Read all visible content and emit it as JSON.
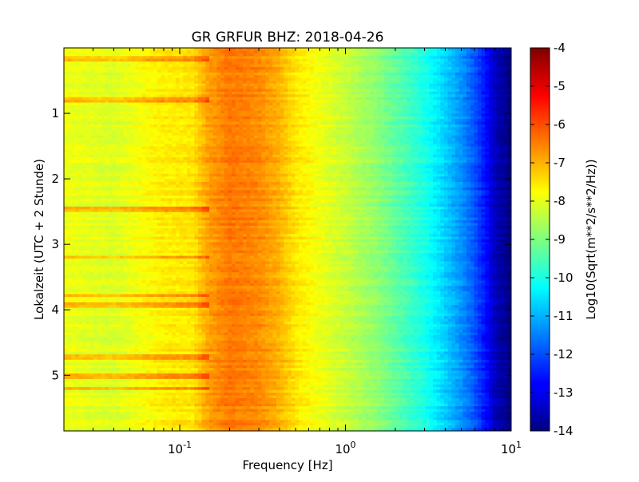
{
  "chart_data": {
    "type": "heatmap",
    "title": "GR GRFUR BHZ: 2018-04-26",
    "xlabel": "Frequency [Hz]",
    "ylabel": "Lokalzeit (UTC + 2 Stunde)",
    "x_scale": "log",
    "xlim": [
      0.02,
      10
    ],
    "ylim": [
      5.85,
      0
    ],
    "y_inverted": true,
    "x_ticks": [
      {
        "base": "10",
        "exp": "-1",
        "value": 0.1
      },
      {
        "base": "10",
        "exp": "0",
        "value": 1
      },
      {
        "base": "10",
        "exp": "1",
        "value": 10
      }
    ],
    "y_ticks": [
      {
        "label": "1",
        "value": 1
      },
      {
        "label": "2",
        "value": 2
      },
      {
        "label": "3",
        "value": 3
      },
      {
        "label": "4",
        "value": 4
      },
      {
        "label": "5",
        "value": 5
      }
    ],
    "colorbar": {
      "label": "Log10(Sqrt(m**2/s**2/Hz))",
      "colormap": "jet",
      "range": [
        -14,
        -4
      ],
      "ticks": [
        "-4",
        "-5",
        "-6",
        "-7",
        "-8",
        "-9",
        "-10",
        "-11",
        "-12",
        "-13",
        "-14"
      ]
    },
    "spectrum_profile": [
      {
        "freq": 0.02,
        "value": -7.9
      },
      {
        "freq": 0.04,
        "value": -8.1
      },
      {
        "freq": 0.06,
        "value": -7.8
      },
      {
        "freq": 0.08,
        "value": -7.6
      },
      {
        "freq": 0.12,
        "value": -7.5
      },
      {
        "freq": 0.15,
        "value": -6.8
      },
      {
        "freq": 0.2,
        "value": -6.4
      },
      {
        "freq": 0.3,
        "value": -6.6
      },
      {
        "freq": 0.4,
        "value": -7.0
      },
      {
        "freq": 0.5,
        "value": -7.5
      },
      {
        "freq": 0.7,
        "value": -7.9
      },
      {
        "freq": 1.0,
        "value": -8.3
      },
      {
        "freq": 1.5,
        "value": -8.8
      },
      {
        "freq": 2.0,
        "value": -9.3
      },
      {
        "freq": 3.0,
        "value": -10.0
      },
      {
        "freq": 4.0,
        "value": -10.7
      },
      {
        "freq": 5.0,
        "value": -11.3
      },
      {
        "freq": 6.0,
        "value": -11.9
      },
      {
        "freq": 7.0,
        "value": -12.6
      },
      {
        "freq": 8.0,
        "value": -13.4
      },
      {
        "freq": 10.0,
        "value": -14.0
      }
    ],
    "elevated_rows": [
      0.18,
      0.78,
      2.45,
      3.2,
      3.78,
      3.92,
      4.72,
      5.0,
      5.2
    ]
  }
}
